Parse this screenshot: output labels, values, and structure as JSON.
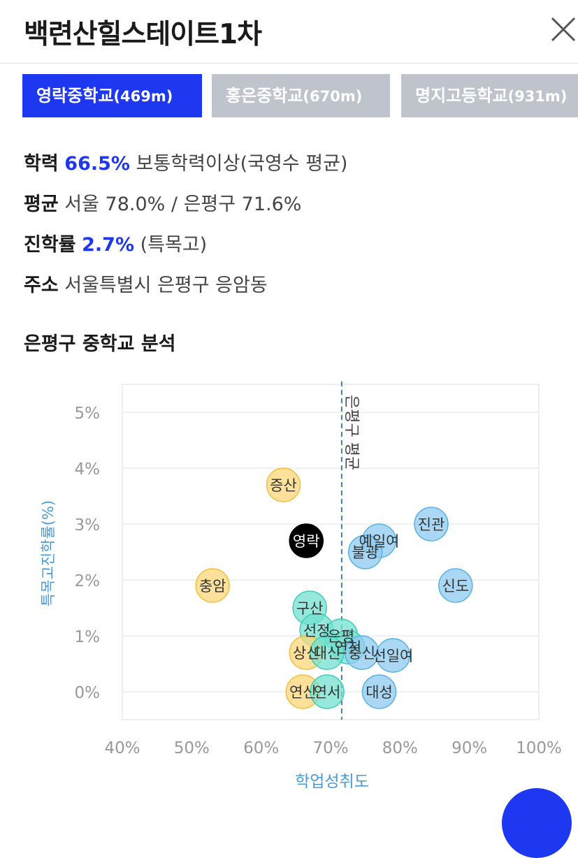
{
  "header": {
    "title": "백련산힐스테이트1차"
  },
  "tabs": [
    {
      "name": "영락중학교",
      "distance": "(469m)",
      "active": true
    },
    {
      "name": "홍은중학교",
      "distance": "(670m)",
      "active": false
    },
    {
      "name": "명지고등학교",
      "distance": "(931m)",
      "active": false
    }
  ],
  "info": {
    "achievement": {
      "label": "학력",
      "value": "66.5%",
      "desc": "보통학력이상(국영수 평균)"
    },
    "average": {
      "label": "평균",
      "value": "서울 78.0% / 은평구 71.6%"
    },
    "advancement": {
      "label": "진학률",
      "value": "2.7%",
      "desc": "(특목고)"
    },
    "address": {
      "label": "주소",
      "value": "서울특별시 은평구 응암동"
    }
  },
  "section": {
    "title": "은평구 중학교 분석"
  },
  "colors": {
    "accent": "#1e37f0",
    "tab_inactive": "#bfc3cc",
    "axis_label": "#4a9ad6",
    "grid": "#ececec",
    "avg_line": "#4a7aa8",
    "bubble_yellow": "#fcd77a",
    "bubble_teal": "#72e0cf",
    "bubble_blue": "#8ecbf0",
    "bubble_black": "#000000"
  },
  "chart_data": {
    "type": "scatter",
    "xlabel": "학업성취도",
    "ylabel": "특목고진학률(%)",
    "xlim": [
      40,
      100
    ],
    "ylim": [
      -0.5,
      5.5
    ],
    "xticks": [
      "40%",
      "50%",
      "60%",
      "70%",
      "80%",
      "90%",
      "100%"
    ],
    "yticks": [
      "0%",
      "1%",
      "2%",
      "3%",
      "4%",
      "5%"
    ],
    "average_line": {
      "x": 71.6,
      "label": "은평구 평균"
    },
    "points": [
      {
        "name": "증산",
        "x": 63.2,
        "y": 3.7,
        "group": "yellow"
      },
      {
        "name": "영락",
        "x": 66.5,
        "y": 2.7,
        "group": "black"
      },
      {
        "name": "충암",
        "x": 53.0,
        "y": 1.9,
        "group": "yellow"
      },
      {
        "name": "구산",
        "x": 67.0,
        "y": 1.5,
        "group": "teal"
      },
      {
        "name": "선정",
        "x": 68.0,
        "y": 1.1,
        "group": "teal"
      },
      {
        "name": "은평",
        "x": 71.5,
        "y": 1.0,
        "group": "teal"
      },
      {
        "name": "연천",
        "x": 72.5,
        "y": 0.8,
        "group": "teal"
      },
      {
        "name": "상신",
        "x": 66.5,
        "y": 0.7,
        "group": "yellow"
      },
      {
        "name": "대신",
        "x": 69.5,
        "y": 0.7,
        "group": "teal"
      },
      {
        "name": "충신",
        "x": 74.5,
        "y": 0.7,
        "group": "blue"
      },
      {
        "name": "선일여",
        "x": 79.0,
        "y": 0.65,
        "group": "blue"
      },
      {
        "name": "예일여",
        "x": 77.0,
        "y": 2.7,
        "group": "blue"
      },
      {
        "name": "불광",
        "x": 75.0,
        "y": 2.5,
        "group": "blue"
      },
      {
        "name": "진관",
        "x": 84.5,
        "y": 3.0,
        "group": "blue"
      },
      {
        "name": "신도",
        "x": 88.0,
        "y": 1.9,
        "group": "blue"
      },
      {
        "name": "연신",
        "x": 66.0,
        "y": 0.0,
        "group": "yellow"
      },
      {
        "name": "연서",
        "x": 69.5,
        "y": 0.0,
        "group": "teal"
      },
      {
        "name": "대성",
        "x": 77.0,
        "y": 0.0,
        "group": "blue"
      }
    ]
  }
}
